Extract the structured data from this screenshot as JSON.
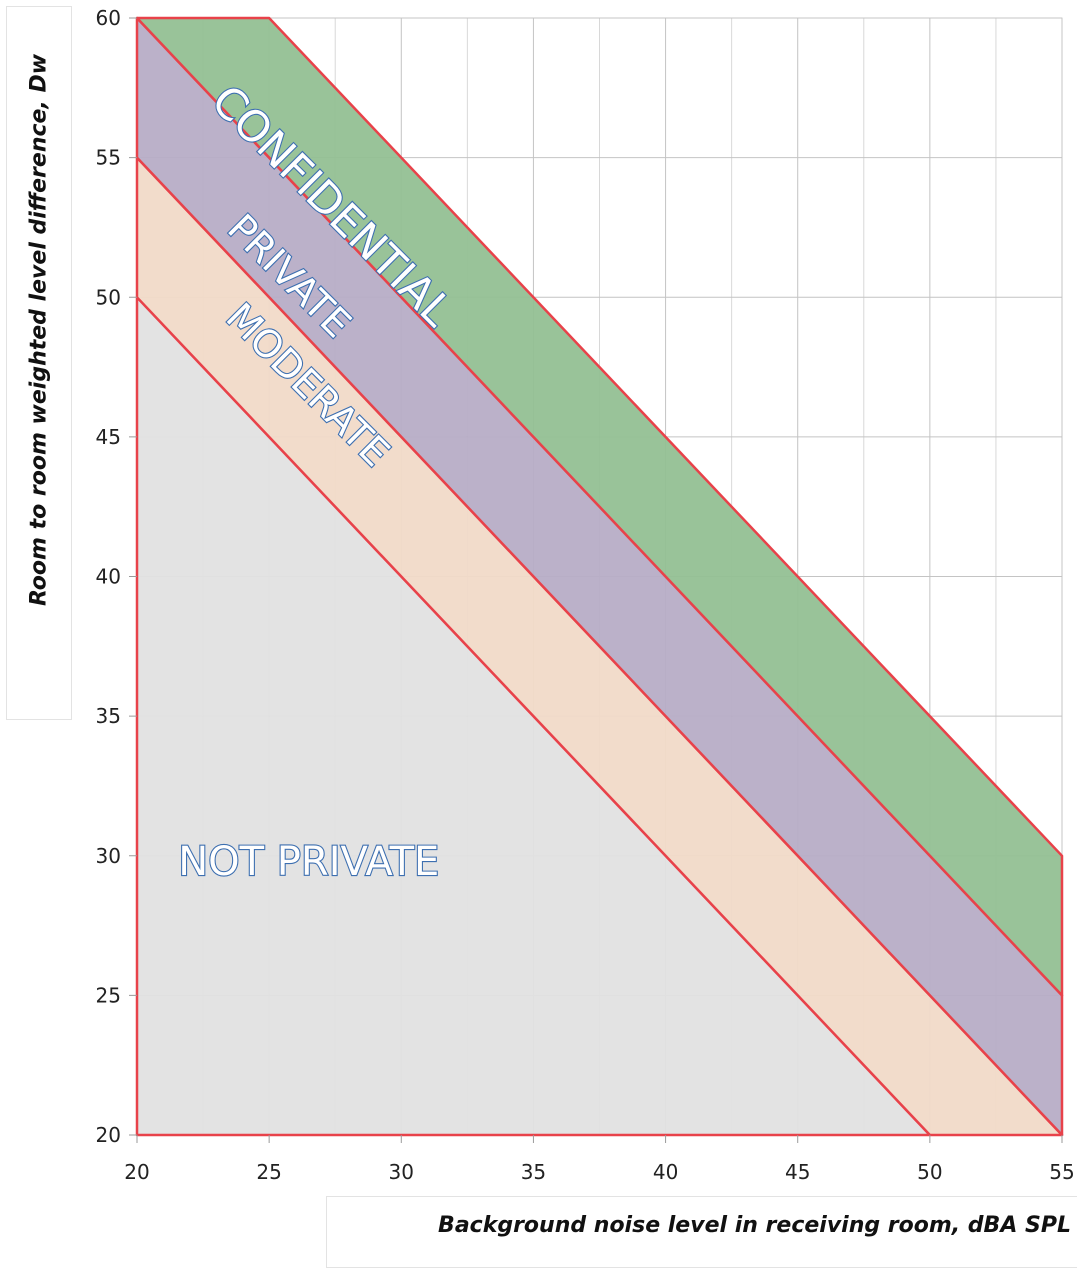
{
  "chart_data": {
    "type": "area",
    "title": "",
    "xlabel": "Background noise level in receiving room, dBA SPL",
    "ylabel": "Room to room weighted level difference, Dw",
    "xlim": [
      20,
      55
    ],
    "ylim": [
      20,
      60
    ],
    "x_ticks": [
      20,
      25,
      30,
      35,
      40,
      45,
      50,
      55
    ],
    "y_ticks": [
      20,
      25,
      30,
      35,
      40,
      45,
      50,
      55,
      60
    ],
    "grid": true,
    "border_color": "#e8424a",
    "regions": [
      {
        "name": "NOT PRIVATE",
        "color": "#e1e1e1",
        "polygon": [
          [
            20,
            20
          ],
          [
            20,
            50
          ],
          [
            50,
            20
          ]
        ],
        "label_angle": 0
      },
      {
        "name": "MODERATE",
        "color": "#f1dac8",
        "polygon": [
          [
            20,
            50
          ],
          [
            20,
            55
          ],
          [
            55,
            20
          ],
          [
            50,
            20
          ]
        ],
        "label_angle": 45
      },
      {
        "name": "PRIVATE",
        "color": "#b7adc6",
        "polygon": [
          [
            20,
            55
          ],
          [
            20,
            60
          ],
          [
            55,
            25
          ],
          [
            55,
            20
          ]
        ],
        "label_angle": 45
      },
      {
        "name": "CONFIDENTIAL",
        "color": "#93c093",
        "polygon": [
          [
            20,
            60
          ],
          [
            25,
            60
          ],
          [
            55,
            30
          ],
          [
            55,
            25
          ]
        ],
        "label_angle": 45
      }
    ]
  }
}
